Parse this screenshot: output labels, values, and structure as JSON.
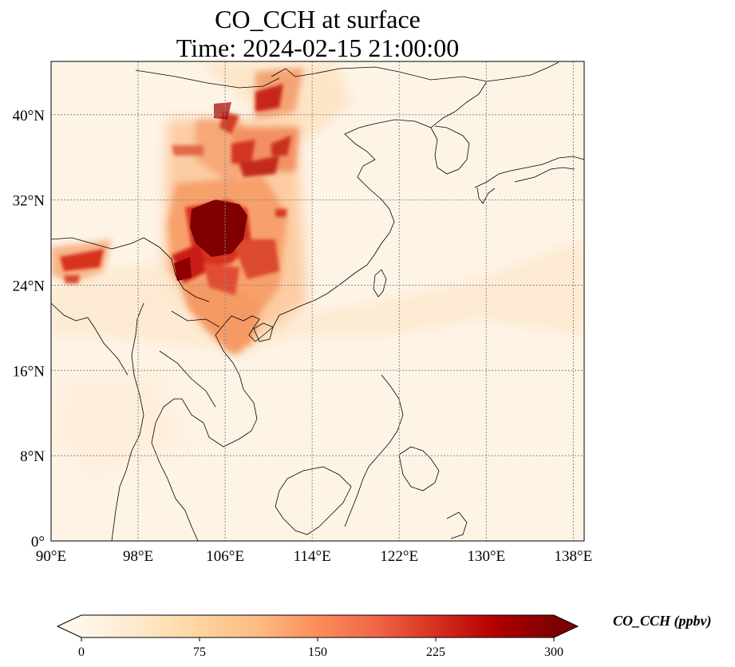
{
  "title": {
    "line1": "CO_CCH at surface",
    "line2": "Time: 2024-02-15 21:00:00"
  },
  "map": {
    "lon_range": [
      90,
      139
    ],
    "lat_range": [
      0,
      45
    ],
    "lon_ticks": [
      {
        "value": 90,
        "label": "90°E"
      },
      {
        "value": 98,
        "label": "98°E"
      },
      {
        "value": 106,
        "label": "106°E"
      },
      {
        "value": 114,
        "label": "114°E"
      },
      {
        "value": 122,
        "label": "122°E"
      },
      {
        "value": 130,
        "label": "130°E"
      },
      {
        "value": 138,
        "label": "138°E"
      }
    ],
    "lat_ticks": [
      {
        "value": 0,
        "label": "0°"
      },
      {
        "value": 8,
        "label": "8°N"
      },
      {
        "value": 16,
        "label": "16°N"
      },
      {
        "value": 24,
        "label": "24°N"
      },
      {
        "value": 32,
        "label": "32°N"
      },
      {
        "value": 40,
        "label": "40°N"
      }
    ],
    "gridlines": true,
    "gridline_color": "#888888",
    "coastline_color": "#000000",
    "background_color": "#fef4e6"
  },
  "colorbar": {
    "colormap": "OrRd",
    "label": "CO_CCH (ppbv)",
    "min": 0,
    "max": 300,
    "extend": "both",
    "ticks": [
      {
        "value": 0,
        "label": "0"
      },
      {
        "value": 75,
        "label": "75"
      },
      {
        "value": 150,
        "label": "150"
      },
      {
        "value": 225,
        "label": "225"
      },
      {
        "value": 300,
        "label": "300"
      }
    ],
    "stops": [
      "#fff7ec",
      "#fee8c8",
      "#fdd49e",
      "#fdbb84",
      "#fc8d59",
      "#ef6548",
      "#d7301f",
      "#b30000",
      "#7f0000"
    ]
  }
}
